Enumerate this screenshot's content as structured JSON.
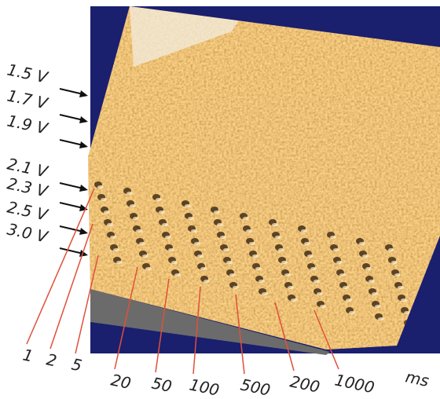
{
  "voltage_labels": [
    "1.5 V",
    "1.7 V",
    "1.9 V",
    "2.1 V",
    "2.3 V",
    "2.5 V",
    "3.0 V"
  ],
  "time_labels": [
    "1",
    "2",
    "5",
    "20",
    "50",
    "100",
    "500",
    "200",
    "1000"
  ],
  "time_unit": "ms"
}
